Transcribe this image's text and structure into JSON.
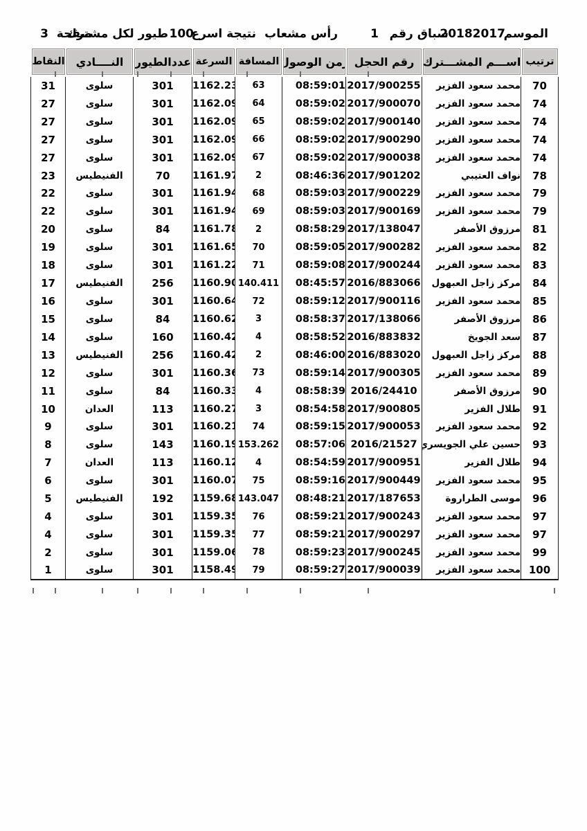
{
  "title": {
    "season_label": "الموسم",
    "season_value": "20182017",
    "race_label": "سباق رقم",
    "race_number": "1",
    "location": "رأس مشعاب",
    "result_label": "نتيجة اسرع",
    "birds_count": "100",
    "birds_suffix": "طيور لكل مشترك",
    "page_label": "صفحة",
    "page_number": "3"
  },
  "table": {
    "columns": [
      {
        "key": "rank",
        "label": "ترتيب"
      },
      {
        "key": "name",
        "label": "اســـم المشـــترك"
      },
      {
        "key": "ring",
        "label": "رقم الحجل"
      },
      {
        "key": "arrival",
        "label": "زمن الوصول"
      },
      {
        "key": "distance",
        "label": "المسافة"
      },
      {
        "key": "speed",
        "label": "السرعة"
      },
      {
        "key": "birds",
        "label": "عددالطيور"
      },
      {
        "key": "club",
        "label": "النــــادي"
      },
      {
        "key": "points",
        "label": "النقاط"
      }
    ],
    "rows": [
      {
        "rank": "70",
        "name": "محمد سعود الفزير",
        "ring": "2017/900255",
        "arrival": "08:59:01",
        "distance": "63",
        "speed": "1162.23",
        "birds": "301",
        "club": "سلوى",
        "points": "31"
      },
      {
        "rank": "74",
        "name": "محمد سعود الفزير",
        "ring": "2017/900070",
        "arrival": "08:59:02",
        "distance": "64",
        "speed": "1162.09",
        "birds": "301",
        "club": "سلوى",
        "points": "27"
      },
      {
        "rank": "74",
        "name": "محمد سعود الفزير",
        "ring": "2017/900140",
        "arrival": "08:59:02",
        "distance": "65",
        "speed": "1162.09",
        "birds": "301",
        "club": "سلوى",
        "points": "27"
      },
      {
        "rank": "74",
        "name": "محمد سعود الفزير",
        "ring": "2017/900290",
        "arrival": "08:59:02",
        "distance": "66",
        "speed": "1162.09",
        "birds": "301",
        "club": "سلوى",
        "points": "27"
      },
      {
        "rank": "74",
        "name": "محمد سعود الفزير",
        "ring": "2017/900038",
        "arrival": "08:59:02",
        "distance": "67",
        "speed": "1162.09",
        "birds": "301",
        "club": "سلوى",
        "points": "27"
      },
      {
        "rank": "78",
        "name": "نواف العتيبي",
        "ring": "2017/901202",
        "arrival": "08:46:36",
        "distance": "2",
        "speed": "1161.97",
        "birds": "70",
        "club": "الفنيطيس",
        "points": "23"
      },
      {
        "rank": "79",
        "name": "محمد سعود الفزير",
        "ring": "2017/900229",
        "arrival": "08:59:03",
        "distance": "68",
        "speed": "1161.94",
        "birds": "301",
        "club": "سلوى",
        "points": "22"
      },
      {
        "rank": "79",
        "name": "محمد سعود الفزير",
        "ring": "2017/900169",
        "arrival": "08:59:03",
        "distance": "69",
        "speed": "1161.94",
        "birds": "301",
        "club": "سلوى",
        "points": "22"
      },
      {
        "rank": "81",
        "name": "مرزوق الأصفر",
        "ring": "2017/138047",
        "arrival": "08:58:29",
        "distance": "2",
        "speed": "1161.78",
        "birds": "84",
        "club": "سلوى",
        "points": "20"
      },
      {
        "rank": "82",
        "name": "محمد سعود الفزير",
        "ring": "2017/900282",
        "arrival": "08:59:05",
        "distance": "70",
        "speed": "1161.65",
        "birds": "301",
        "club": "سلوى",
        "points": "19"
      },
      {
        "rank": "83",
        "name": "محمد سعود الفزير",
        "ring": "2017/900244",
        "arrival": "08:59:08",
        "distance": "71",
        "speed": "1161.22",
        "birds": "301",
        "club": "سلوى",
        "points": "18"
      },
      {
        "rank": "84",
        "name": "مركز زاجل العبهول",
        "ring": "2016/883066",
        "arrival": "08:45:57",
        "distance": "140.411",
        "speed": "1160.90",
        "birds": "256",
        "club": "الفنيطيس",
        "points": "17"
      },
      {
        "rank": "85",
        "name": "محمد سعود الفزير",
        "ring": "2017/900116",
        "arrival": "08:59:12",
        "distance": "72",
        "speed": "1160.64",
        "birds": "301",
        "club": "سلوى",
        "points": "16"
      },
      {
        "rank": "86",
        "name": "مرزوق الأصفر",
        "ring": "2017/138066",
        "arrival": "08:58:37",
        "distance": "3",
        "speed": "1160.62",
        "birds": "84",
        "club": "سلوى",
        "points": "15"
      },
      {
        "rank": "87",
        "name": "سعد الجويخ",
        "ring": "2016/883832",
        "arrival": "08:58:52",
        "distance": "4",
        "speed": "1160.42",
        "birds": "160",
        "club": "سلوى",
        "points": "14"
      },
      {
        "rank": "88",
        "name": "مركز زاجل العبهول",
        "ring": "2016/883020",
        "arrival": "08:46:00",
        "distance": "2",
        "speed": "1160.42",
        "birds": "256",
        "club": "الفنيطيس",
        "points": "13"
      },
      {
        "rank": "89",
        "name": "محمد سعود الفزير",
        "ring": "2017/900305",
        "arrival": "08:59:14",
        "distance": "73",
        "speed": "1160.36",
        "birds": "301",
        "club": "سلوى",
        "points": "12"
      },
      {
        "rank": "90",
        "name": "مرزوق الأصفر",
        "ring": "2016/24410",
        "arrival": "08:58:39",
        "distance": "4",
        "speed": "1160.33",
        "birds": "84",
        "club": "سلوى",
        "points": "11"
      },
      {
        "rank": "91",
        "name": "طلال الفزير",
        "ring": "2017/900805",
        "arrival": "08:54:58",
        "distance": "3",
        "speed": "1160.27",
        "birds": "113",
        "club": "العدان",
        "points": "10"
      },
      {
        "rank": "92",
        "name": "محمد سعود الفزير",
        "ring": "2017/900053",
        "arrival": "08:59:15",
        "distance": "74",
        "speed": "1160.21",
        "birds": "301",
        "club": "سلوى",
        "points": "9"
      },
      {
        "rank": "93",
        "name": "حسين علي الجويسري",
        "ring": "2016/21527",
        "arrival": "08:57:06",
        "distance": "153.262",
        "speed": "1160.19",
        "birds": "143",
        "club": "سلوى",
        "points": "8"
      },
      {
        "rank": "94",
        "name": "طلال الفزير",
        "ring": "2017/900951",
        "arrival": "08:54:59",
        "distance": "4",
        "speed": "1160.12",
        "birds": "113",
        "club": "العدان",
        "points": "7"
      },
      {
        "rank": "95",
        "name": "محمد سعود الفزير",
        "ring": "2017/900449",
        "arrival": "08:59:16",
        "distance": "75",
        "speed": "1160.07",
        "birds": "301",
        "club": "سلوى",
        "points": "6"
      },
      {
        "rank": "96",
        "name": "موسى الطراروة",
        "ring": "2017/187653",
        "arrival": "08:48:21",
        "distance": "143.047",
        "speed": "1159.68",
        "birds": "192",
        "club": "الفنيطيس",
        "points": "5"
      },
      {
        "rank": "97",
        "name": "محمد سعود الفزير",
        "ring": "2017/900243",
        "arrival": "08:59:21",
        "distance": "76",
        "speed": "1159.35",
        "birds": "301",
        "club": "سلوى",
        "points": "4"
      },
      {
        "rank": "97",
        "name": "محمد سعود الفزير",
        "ring": "2017/900297",
        "arrival": "08:59:21",
        "distance": "77",
        "speed": "1159.35",
        "birds": "301",
        "club": "سلوى",
        "points": "4"
      },
      {
        "rank": "99",
        "name": "محمد سعود الفزير",
        "ring": "2017/900245",
        "arrival": "08:59:23",
        "distance": "78",
        "speed": "1159.06",
        "birds": "301",
        "club": "سلوى",
        "points": "2"
      },
      {
        "rank": "100",
        "name": "محمد سعود الفزير",
        "ring": "2017/900039",
        "arrival": "08:59:27",
        "distance": "79",
        "speed": "1158.49",
        "birds": "301",
        "club": "سلوى",
        "points": "1"
      }
    ]
  },
  "colors": {
    "header_cell_bg": "#cbcac8",
    "header_cell_border": "#8f8f8f",
    "grid_line": "#1a1a1a",
    "text": "#050505",
    "page_bg": "#fefefe"
  }
}
